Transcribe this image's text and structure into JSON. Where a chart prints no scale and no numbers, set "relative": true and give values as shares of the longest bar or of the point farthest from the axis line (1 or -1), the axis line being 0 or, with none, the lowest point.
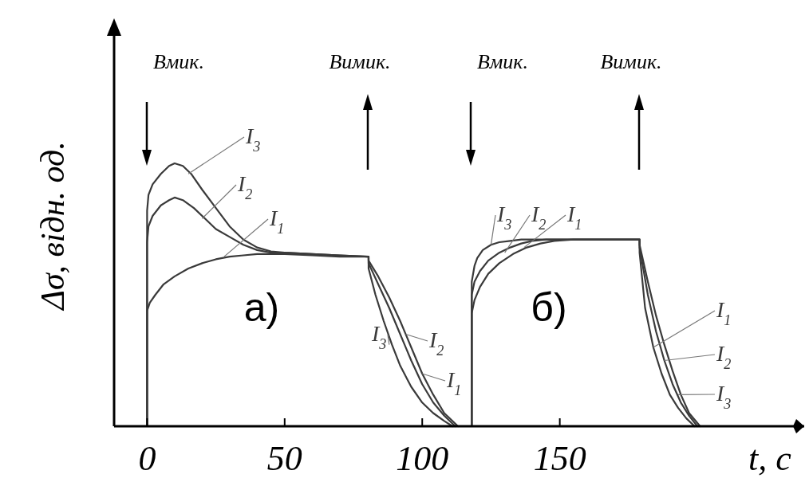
{
  "chart_data": {
    "type": "line",
    "relative": true,
    "xlabel": "t, c",
    "ylabel": "Δσ, відн. од.",
    "xlim": [
      -12,
      240
    ],
    "xticks": [
      0,
      50,
      100,
      150
    ],
    "grid": false,
    "line_style": "solid",
    "annotations": [
      "Вмик.",
      "Вимик.",
      "Вмик.",
      "Вимик.",
      "а)",
      "б)"
    ],
    "series": [
      {
        "name": "I$_{3}$",
        "color": "#3a3a3a",
        "x": [
          0,
          0,
          0.5,
          2,
          5,
          8,
          10,
          13,
          16,
          20,
          25,
          30,
          35,
          40,
          45,
          50,
          60,
          70,
          80.5,
          80.5,
          83,
          86,
          89,
          92,
          96,
          100,
          104,
          108,
          111
        ],
        "values": [
          0,
          0.82,
          0.88,
          0.92,
          0.96,
          0.99,
          1,
          0.99,
          0.96,
          0.9,
          0.83,
          0.76,
          0.71,
          0.68,
          0.665,
          0.66,
          0.655,
          0.65,
          0.645,
          0.6,
          0.5,
          0.4,
          0.31,
          0.23,
          0.15,
          0.09,
          0.05,
          0.02,
          0
        ]
      },
      {
        "name": "I$_{2}$",
        "color": "#3a3a3a",
        "x": [
          0,
          0,
          0.5,
          2,
          5,
          8,
          10,
          13,
          17,
          21,
          25,
          30,
          35,
          40,
          45,
          50,
          60,
          70,
          80.5,
          80.5,
          84,
          88,
          92,
          96,
          100,
          104,
          108,
          112
        ],
        "values": [
          0,
          0.7,
          0.76,
          0.8,
          0.84,
          0.86,
          0.87,
          0.86,
          0.83,
          0.79,
          0.75,
          0.72,
          0.69,
          0.67,
          0.66,
          0.66,
          0.655,
          0.65,
          0.645,
          0.62,
          0.54,
          0.45,
          0.35,
          0.25,
          0.16,
          0.09,
          0.04,
          0
        ]
      },
      {
        "name": "I$_{1}$",
        "color": "#3a3a3a",
        "x": [
          0,
          0,
          1,
          3,
          6,
          10,
          15,
          20,
          25,
          30,
          35,
          40,
          50,
          60,
          70,
          80.5,
          80.5,
          84,
          88,
          92,
          96,
          100,
          104,
          108,
          113
        ],
        "values": [
          0,
          0.44,
          0.47,
          0.5,
          0.54,
          0.57,
          0.6,
          0.62,
          0.635,
          0.645,
          0.65,
          0.655,
          0.655,
          0.65,
          0.645,
          0.645,
          0.63,
          0.57,
          0.49,
          0.4,
          0.3,
          0.2,
          0.12,
          0.05,
          0
        ]
      },
      {
        "name": "I$_{3}$",
        "color": "#3a3a3a",
        "x": [
          118,
          118,
          119,
          120,
          122,
          125,
          128,
          132,
          136,
          140,
          150,
          160,
          170,
          179,
          179,
          182,
          185,
          188,
          191,
          194,
          197,
          201
        ],
        "values": [
          0,
          0.55,
          0.61,
          0.64,
          0.67,
          0.69,
          0.7,
          0.705,
          0.71,
          0.71,
          0.71,
          0.71,
          0.71,
          0.71,
          0.69,
          0.55,
          0.42,
          0.31,
          0.21,
          0.12,
          0.05,
          0
        ]
      },
      {
        "name": "I$_{2}$",
        "color": "#3a3a3a",
        "x": [
          118,
          118,
          119,
          121,
          124,
          128,
          132,
          136,
          140,
          145,
          150,
          160,
          170,
          179,
          179,
          182,
          185,
          188,
          191,
          194,
          197,
          200
        ],
        "values": [
          0,
          0.5,
          0.55,
          0.59,
          0.63,
          0.66,
          0.68,
          0.695,
          0.705,
          0.71,
          0.71,
          0.71,
          0.71,
          0.71,
          0.68,
          0.5,
          0.36,
          0.25,
          0.16,
          0.09,
          0.04,
          0
        ]
      },
      {
        "name": "I$_{1}$",
        "color": "#3a3a3a",
        "x": [
          118,
          118,
          119,
          121,
          124,
          128,
          133,
          138,
          143,
          148,
          155,
          160,
          170,
          179,
          179,
          181,
          184,
          187,
          190,
          193,
          196,
          199
        ],
        "values": [
          0,
          0.43,
          0.48,
          0.53,
          0.58,
          0.62,
          0.655,
          0.68,
          0.695,
          0.705,
          0.71,
          0.71,
          0.71,
          0.71,
          0.66,
          0.45,
          0.3,
          0.2,
          0.12,
          0.07,
          0.03,
          0
        ]
      }
    ]
  }
}
